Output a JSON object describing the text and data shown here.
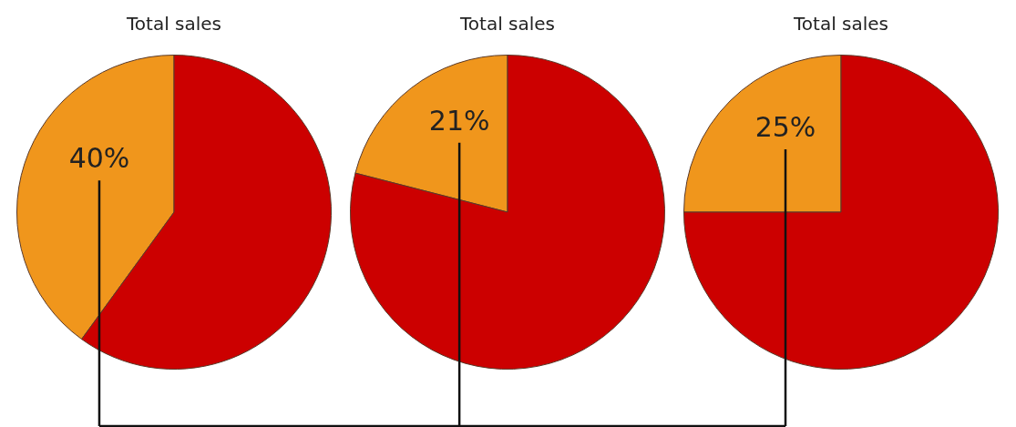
{
  "chart_data": [
    {
      "type": "pie",
      "title": "Total sales",
      "categories": [
        null,
        null
      ],
      "values": [
        40,
        60
      ],
      "colors": [
        "#f0961c",
        "#cc0000"
      ],
      "value_labels": [
        "40%",
        null
      ]
    },
    {
      "type": "pie",
      "title": "Total sales",
      "categories": [
        null,
        null
      ],
      "values": [
        21,
        79
      ],
      "colors": [
        "#f0961c",
        "#cc0000"
      ],
      "value_labels": [
        "21%",
        null
      ]
    },
    {
      "type": "pie",
      "title": "Total sales",
      "categories": [
        null,
        null
      ],
      "values": [
        25,
        75
      ],
      "colors": [
        "#f0961c",
        "#cc0000"
      ],
      "value_labels": [
        "25%",
        null
      ]
    }
  ]
}
